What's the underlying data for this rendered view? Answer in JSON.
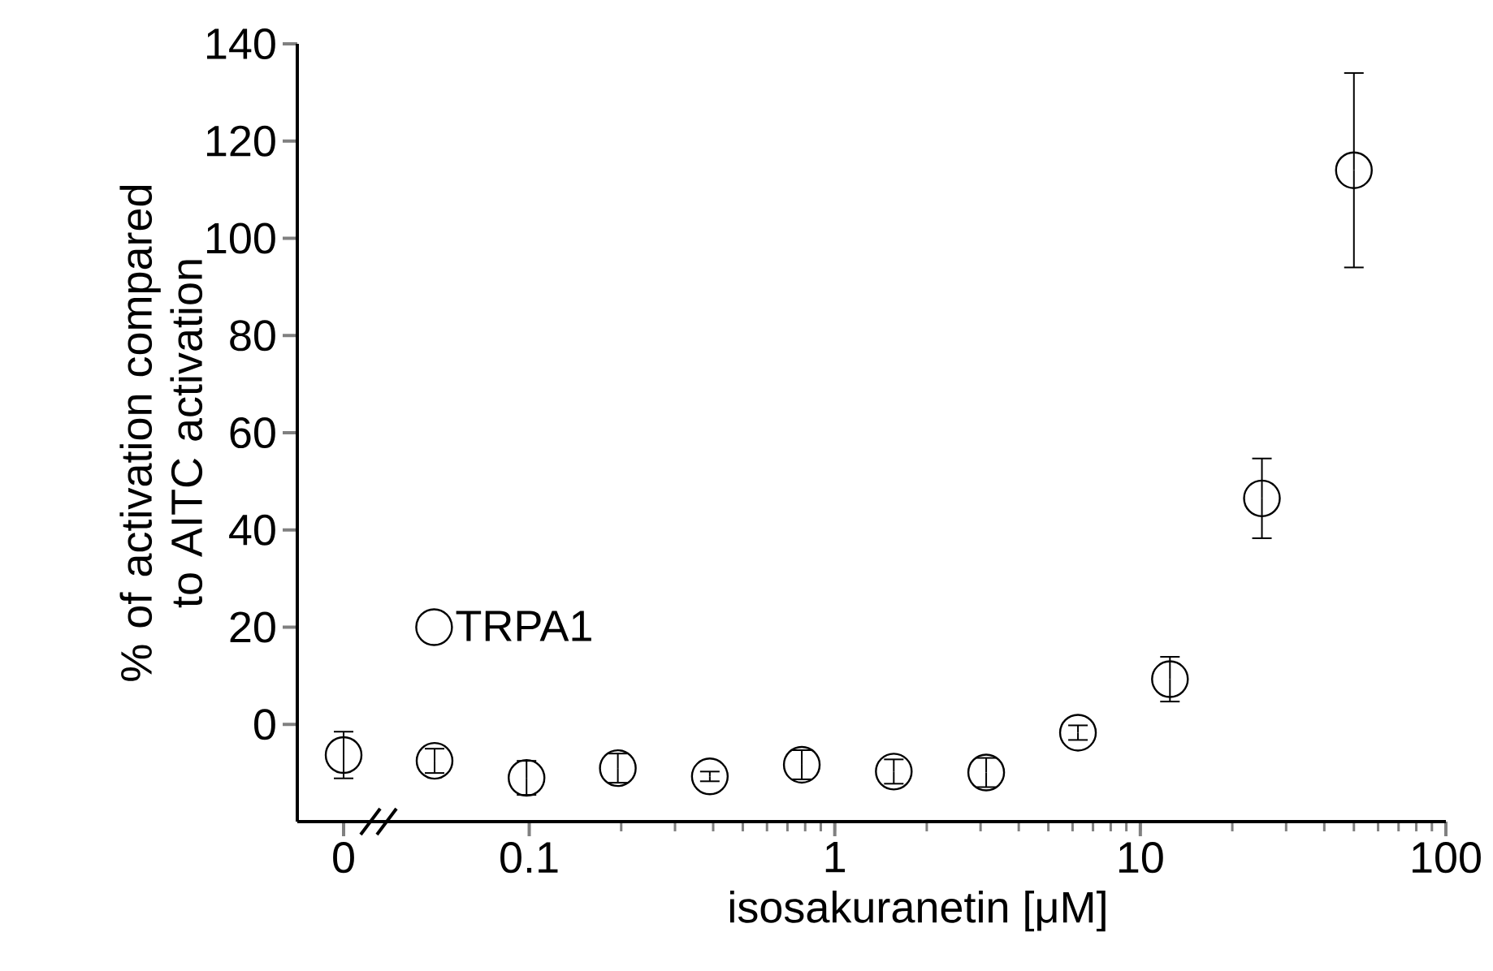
{
  "chart_data": [
    {
      "type": "scatter",
      "categories": [
        "0"
      ],
      "values": [
        -6.3
      ],
      "errors": [
        4.8
      ],
      "color": "#000000",
      "marker": "circle",
      "ylim": [
        -20,
        140
      ],
      "yticks": [
        0,
        20,
        40,
        60,
        80,
        100,
        120,
        140
      ],
      "ylabel": "% of activation compared to AITC activation"
    },
    {
      "type": "scatter",
      "xlabel": "isosakuranetin [μM]",
      "log": "x",
      "xlim": [
        0.035,
        100
      ],
      "xticks": [
        0.1,
        1,
        10,
        100
      ],
      "ylim": [
        -20,
        140
      ],
      "tick_labels": "x",
      "legend": "left",
      "marker": "circle",
      "series": [
        {
          "name": "TRPA1",
          "color": "#000000",
          "x": [
            0.049,
            0.098,
            0.195,
            0.39,
            0.78,
            1.56,
            3.13,
            6.25,
            12.5,
            25,
            50
          ],
          "values": [
            -7.5,
            -11,
            -9,
            -10.7,
            -8.3,
            -9.7,
            -9.9,
            -1.7,
            9.3,
            46.5,
            114
          ],
          "errors": [
            2.5,
            3.5,
            3,
            1,
            3,
            2.5,
            3,
            1.5,
            4.6,
            8.2,
            20
          ]
        }
      ]
    }
  ]
}
